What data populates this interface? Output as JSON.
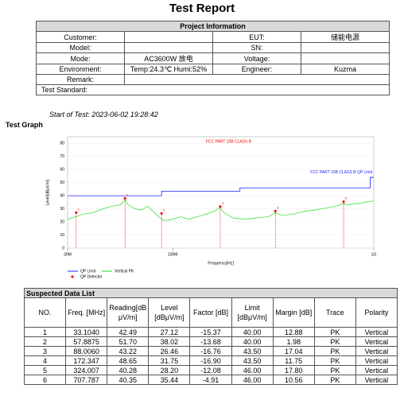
{
  "header": {
    "title": "Test Report"
  },
  "project": {
    "title": "Project Information",
    "rows": [
      [
        "Customer:",
        null,
        "EUT:",
        "储能电源"
      ],
      [
        "Model:",
        null,
        "SN:",
        null
      ],
      [
        "Mode:",
        "AC3600W 放电",
        "Voltage:",
        null
      ],
      [
        "Environment:",
        "Temp:24.3℃  Humi:52%",
        "Engineer:",
        "Kuzma"
      ]
    ],
    "remark": "Remark:",
    "test_standard": "Test Standard:"
  },
  "start_of_test": "Start of Test: 2023-06-02 19:28:42",
  "graph_title": "Test Graph",
  "chart_data": {
    "type": "line",
    "title": "FCC PART 15B CLASS B",
    "limit_label": "FCC PART 15B CLASS B QP Limit",
    "xlabel": "Frequency[Hz]",
    "ylabel": "Level[dBμV/m]",
    "xscale": "log",
    "xlim": [
      30,
      1000
    ],
    "ylim": [
      0,
      85
    ],
    "xticks": [
      {
        "value": 30,
        "label": "30M"
      },
      {
        "value": 100,
        "label": "100M"
      },
      {
        "value": 1000,
        "label": "1G"
      }
    ],
    "yticks": [
      0,
      10,
      20,
      30,
      40,
      50,
      60,
      70,
      80
    ],
    "series": [
      {
        "name": "QP Limit",
        "color": "#1f1fff",
        "x": [
          30,
          88,
          88,
          216,
          216,
          960,
          960,
          1000
        ],
        "values": [
          40,
          40,
          43.5,
          43.5,
          46,
          46,
          54,
          54
        ]
      },
      {
        "name": "Vertical PK",
        "color": "#22dd22",
        "x": [
          30,
          33,
          36,
          40,
          45,
          50,
          55,
          58,
          60,
          65,
          70,
          75,
          80,
          85,
          90,
          100,
          110,
          120,
          140,
          160,
          172,
          180,
          200,
          230,
          260,
          300,
          324,
          350,
          400,
          450,
          500,
          550,
          600,
          650,
          700,
          750,
          800,
          850,
          900,
          1000
        ],
        "values": [
          22,
          24,
          26,
          27,
          30,
          32,
          33,
          37,
          33,
          30,
          29,
          32,
          28,
          24,
          21,
          22,
          24,
          22,
          25,
          28,
          31,
          27,
          23,
          22,
          23,
          24,
          27,
          25,
          26,
          28,
          29,
          30,
          31,
          32,
          34,
          33,
          34,
          34,
          35,
          36
        ]
      }
    ],
    "markers": {
      "name": "QP Detector",
      "color": "#ee0000",
      "x": [
        33.104,
        57.8875,
        88.006,
        172.347,
        324.007,
        707.787
      ],
      "values": [
        27.12,
        38.02,
        26.46,
        31.75,
        28.2,
        35.44
      ]
    }
  },
  "table": {
    "title": "Suspected Data List",
    "columns": [
      "NO.",
      "Freq. [MHz]",
      "Reading[dBμV/m]",
      "Level [dBμV/m]",
      "Factor [dB]",
      "Limit [dBμV/m]",
      "Margin [dB]",
      "Trace",
      "Polarity"
    ],
    "rows": [
      [
        "1",
        "33.1040",
        "42.49",
        "27.12",
        "-15.37",
        "40.00",
        "12.88",
        "PK",
        "Vertical"
      ],
      [
        "2",
        "57.8875",
        "51.70",
        "38.02",
        "-13.68",
        "40.00",
        "1.98",
        "PK",
        "Vertical"
      ],
      [
        "3",
        "88.0060",
        "43.22",
        "26.46",
        "-16.76",
        "43.50",
        "17.04",
        "PK",
        "Vertical"
      ],
      [
        "4",
        "172.347",
        "48.65",
        "31.75",
        "-16.90",
        "43.50",
        "11.75",
        "PK",
        "Vertical"
      ],
      [
        "5",
        "324.007",
        "40.28",
        "28.20",
        "-12.08",
        "46.00",
        "17.80",
        "PK",
        "Vertical"
      ],
      [
        "6",
        "707.787",
        "40.35",
        "35.44",
        "-4.91",
        "46.00",
        "10.56",
        "PK",
        "Vertical"
      ]
    ]
  }
}
